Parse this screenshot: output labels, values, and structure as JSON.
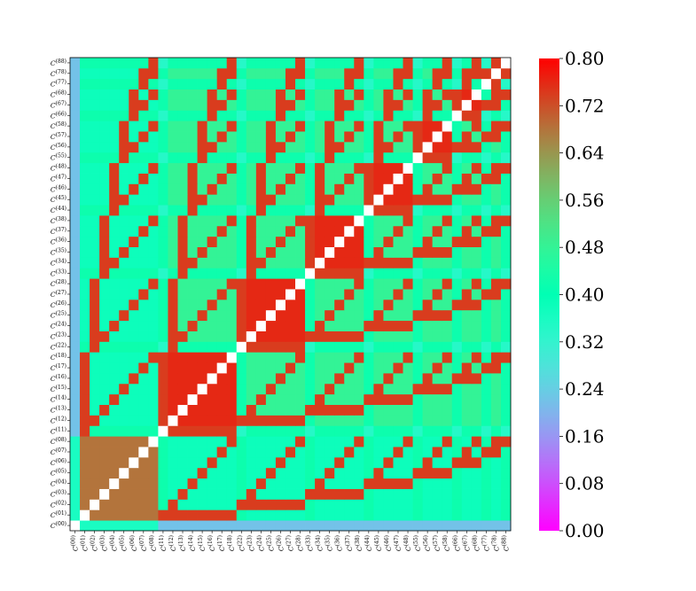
{
  "chart_data": {
    "type": "heatmap",
    "title": "",
    "xlabel": "",
    "ylabel": "",
    "labels": [
      {
        "base": "C",
        "sup": "(00)"
      },
      {
        "base": "C",
        "sup": "(01)"
      },
      {
        "base": "C",
        "sup": "(02)"
      },
      {
        "base": "C",
        "sup": "(03)"
      },
      {
        "base": "C",
        "sup": "(04)"
      },
      {
        "base": "C",
        "sup": "(05)"
      },
      {
        "base": "C",
        "sup": "(06)"
      },
      {
        "base": "C",
        "sup": "(07)"
      },
      {
        "base": "C",
        "sup": "(08)"
      },
      {
        "base": "C",
        "sup": "(11)"
      },
      {
        "base": "C",
        "sup": "(12)"
      },
      {
        "base": "C",
        "sup": "(13)"
      },
      {
        "base": "C",
        "sup": "(14)"
      },
      {
        "base": "C",
        "sup": "(15)"
      },
      {
        "base": "C",
        "sup": "(16)"
      },
      {
        "base": "C",
        "sup": "(17)"
      },
      {
        "base": "C",
        "sup": "(18)"
      },
      {
        "base": "C",
        "sup": "(22)"
      },
      {
        "base": "C",
        "sup": "(23)"
      },
      {
        "base": "C",
        "sup": "(24)"
      },
      {
        "base": "C",
        "sup": "(25)"
      },
      {
        "base": "C",
        "sup": "(26)"
      },
      {
        "base": "C",
        "sup": "(27)"
      },
      {
        "base": "C",
        "sup": "(28)"
      },
      {
        "base": "C",
        "sup": "(33)"
      },
      {
        "base": "C",
        "sup": "(34)"
      },
      {
        "base": "C",
        "sup": "(35)"
      },
      {
        "base": "C",
        "sup": "(36)"
      },
      {
        "base": "C",
        "sup": "(37)"
      },
      {
        "base": "C",
        "sup": "(38)"
      },
      {
        "base": "C",
        "sup": "(44)"
      },
      {
        "base": "C",
        "sup": "(45)"
      },
      {
        "base": "C",
        "sup": "(46)"
      },
      {
        "base": "C",
        "sup": "(47)"
      },
      {
        "base": "C",
        "sup": "(48)"
      },
      {
        "base": "C",
        "sup": "(55)"
      },
      {
        "base": "C",
        "sup": "(56)"
      },
      {
        "base": "C",
        "sup": "(57)"
      },
      {
        "base": "C",
        "sup": "(58)"
      },
      {
        "base": "C",
        "sup": "(66)"
      },
      {
        "base": "C",
        "sup": "(67)"
      },
      {
        "base": "C",
        "sup": "(68)"
      },
      {
        "base": "C",
        "sup": "(77)"
      },
      {
        "base": "C",
        "sup": "(78)"
      },
      {
        "base": "C",
        "sup": "(88)"
      }
    ],
    "value_model": {
      "diagonal": 1.0,
      "diagonal_rendered_as": "white (above colorbar max)",
      "same_block_shared_index": 0.76,
      "same_block_other": 0.74,
      "block0_same_block": 0.68,
      "cross_block_shared_index": 0.74,
      "cross_block_other": 0.48,
      "index0_vs_other_blocks": 0.38,
      "self_index_entries": 0.42,
      "cross_self_index_pairs": 0.34,
      "c00_vs_others": 0.22,
      "c00_vs_block0": 0.36
    },
    "colorbar": {
      "min": 0.0,
      "max": 0.8,
      "ticks": [
        "0.00",
        "0.08",
        "0.16",
        "0.24",
        "0.32",
        "0.40",
        "0.48",
        "0.56",
        "0.64",
        "0.72",
        "0.80"
      ],
      "colormap": "rainbow"
    },
    "y_axis_order": "bottom-to-top",
    "grid": false
  }
}
